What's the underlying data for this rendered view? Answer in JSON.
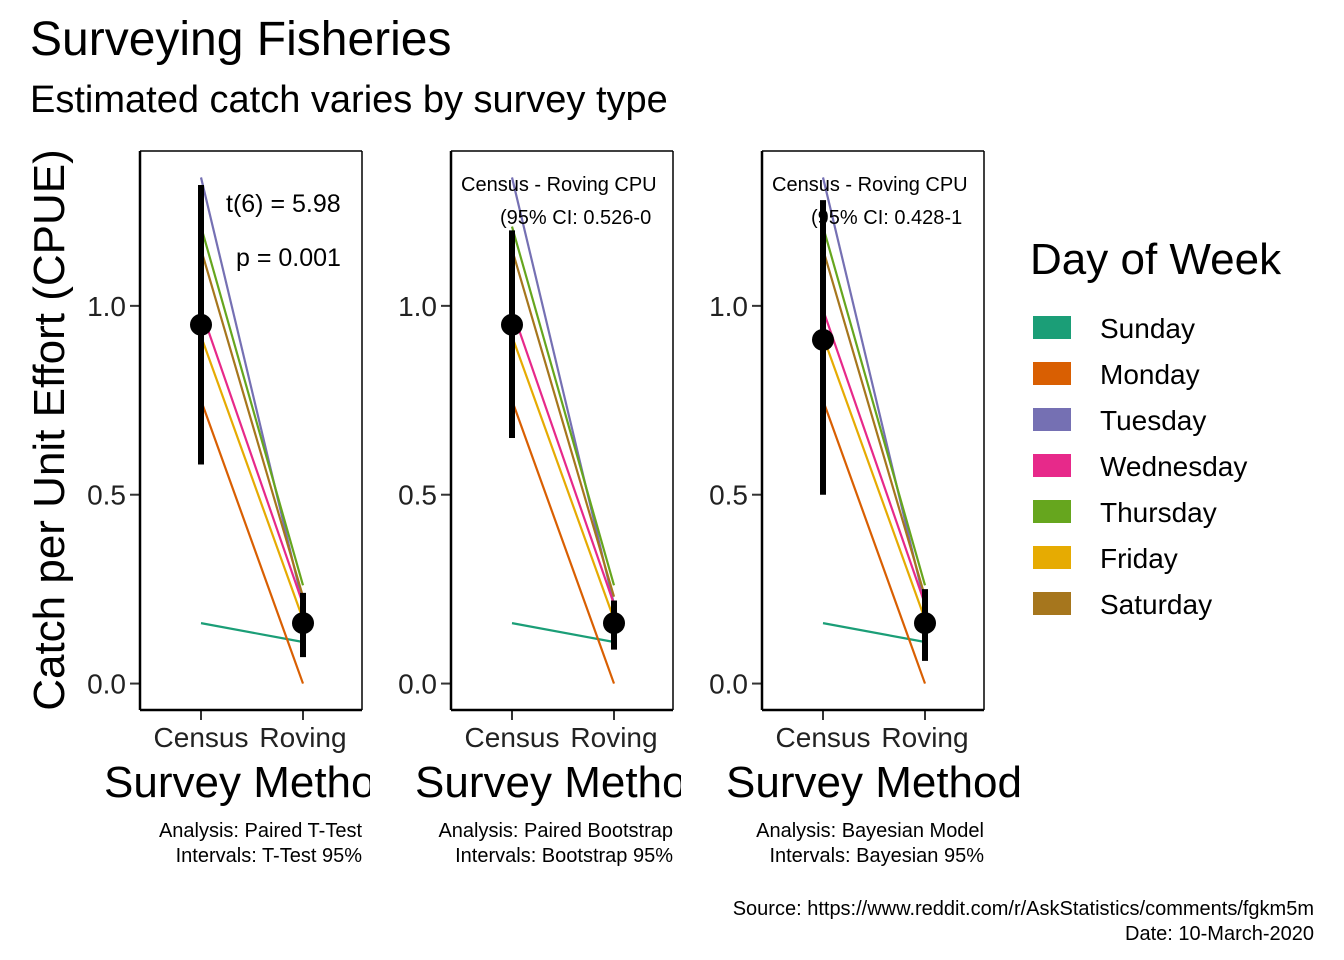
{
  "title": "Surveying Fisheries",
  "subtitle": "Estimated catch varies by survey type",
  "ylabel": "Catch per Unit Effort (CPUE)",
  "xlabel": "Survey Method",
  "source_caption": "Source: https://www.reddit.com/r/AskStatistics/comments/fgkm5m",
  "date_caption": "Date: 10-March-2020",
  "legend": {
    "title": "Day of Week",
    "items": [
      {
        "label": "Sunday",
        "color": "#1b9e77"
      },
      {
        "label": "Monday",
        "color": "#d95f02"
      },
      {
        "label": "Tuesday",
        "color": "#7570b3"
      },
      {
        "label": "Wednesday",
        "color": "#e7298a"
      },
      {
        "label": "Thursday",
        "color": "#66a61e"
      },
      {
        "label": "Friday",
        "color": "#e6ab02"
      },
      {
        "label": "Saturday",
        "color": "#a6761d"
      }
    ]
  },
  "chart_data": {
    "type": "line",
    "categories": [
      "Census",
      "Roving"
    ],
    "ylim": [
      -0.07,
      1.41
    ],
    "yticks": [
      "0.0",
      "0.5",
      "1.0"
    ],
    "series": [
      {
        "name": "Sunday",
        "values": [
          0.16,
          0.11
        ]
      },
      {
        "name": "Monday",
        "values": [
          0.75,
          0.0
        ]
      },
      {
        "name": "Tuesday",
        "values": [
          1.34,
          0.21
        ]
      },
      {
        "name": "Wednesday",
        "values": [
          0.99,
          0.21
        ]
      },
      {
        "name": "Thursday",
        "values": [
          1.21,
          0.26
        ]
      },
      {
        "name": "Friday",
        "values": [
          0.92,
          0.17
        ]
      },
      {
        "name": "Saturday",
        "values": [
          1.15,
          0.23
        ]
      }
    ],
    "panels": [
      {
        "annotation_lines": [
          "t(6) = 5.98",
          "p = 0.001"
        ],
        "caption_lines": [
          "Analysis: Paired T-Test",
          "Intervals: T-Test 95%"
        ],
        "estimates": [
          {
            "category": "Census",
            "mean": 0.95,
            "low": 0.58,
            "high": 1.32
          },
          {
            "category": "Roving",
            "mean": 0.16,
            "low": 0.07,
            "high": 0.24
          }
        ]
      },
      {
        "annotation_lines": [
          "Census - Roving CPU",
          "(95% CI: 0.526-0"
        ],
        "caption_lines": [
          "Analysis: Paired Bootstrap",
          "Intervals: Bootstrap 95%"
        ],
        "estimates": [
          {
            "category": "Census",
            "mean": 0.95,
            "low": 0.65,
            "high": 1.2
          },
          {
            "category": "Roving",
            "mean": 0.16,
            "low": 0.09,
            "high": 0.22
          }
        ]
      },
      {
        "annotation_lines": [
          "Census - Roving CPU",
          "(95% CI: 0.428-1"
        ],
        "caption_lines": [
          "Analysis: Bayesian Model",
          "Intervals: Bayesian 95%"
        ],
        "estimates": [
          {
            "category": "Census",
            "mean": 0.91,
            "low": 0.5,
            "high": 1.28
          },
          {
            "category": "Roving",
            "mean": 0.16,
            "low": 0.06,
            "high": 0.25
          }
        ]
      }
    ]
  }
}
